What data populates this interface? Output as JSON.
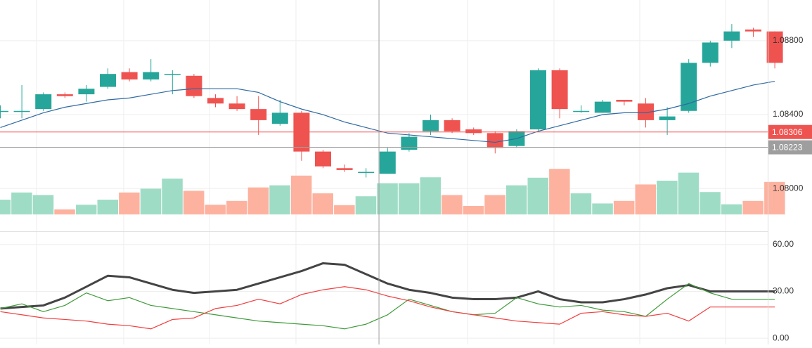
{
  "colors": {
    "up": "#26a69a",
    "down": "#ef5350",
    "volume_up": "#9fdcc6",
    "volume_down": "#fdb29f",
    "ma": "#2f6aa1",
    "price_line": "#ef5350",
    "crosshair_label": "#9e9e9e",
    "grid": "#eeeeee",
    "adx": "#444444",
    "plus_di": "#3f9b3a",
    "minus_di": "#f23d3d"
  },
  "chart_data": [
    {
      "name": "price",
      "type": "candlestick",
      "ylim": [
        1.0786,
        1.0902
      ],
      "y_ticks": [
        "1.08800",
        "1.08400",
        "1.08000"
      ],
      "y_tick_values": [
        1.088,
        1.084,
        1.08
      ],
      "candles": [
        {
          "o": 1.0842,
          "h": 1.0845,
          "l": 1.0838,
          "c": 1.0842
        },
        {
          "o": 1.0842,
          "h": 1.0856,
          "l": 1.0838,
          "c": 1.0842
        },
        {
          "o": 1.0843,
          "h": 1.0852,
          "l": 1.0842,
          "c": 1.0851
        },
        {
          "o": 1.0851,
          "h": 1.0852,
          "l": 1.0849,
          "c": 1.085
        },
        {
          "o": 1.0851,
          "h": 1.0856,
          "l": 1.0847,
          "c": 1.0854
        },
        {
          "o": 1.0855,
          "h": 1.0865,
          "l": 1.0854,
          "c": 1.0862
        },
        {
          "o": 1.0863,
          "h": 1.0865,
          "l": 1.0858,
          "c": 1.0859
        },
        {
          "o": 1.0859,
          "h": 1.087,
          "l": 1.0858,
          "c": 1.0863
        },
        {
          "o": 1.0862,
          "h": 1.0864,
          "l": 1.0851,
          "c": 1.0862
        },
        {
          "o": 1.0861,
          "h": 1.0862,
          "l": 1.0849,
          "c": 1.085
        },
        {
          "o": 1.0849,
          "h": 1.0851,
          "l": 1.0844,
          "c": 1.0846
        },
        {
          "o": 1.0846,
          "h": 1.085,
          "l": 1.0842,
          "c": 1.0843
        },
        {
          "o": 1.0843,
          "h": 1.085,
          "l": 1.0829,
          "c": 1.0837
        },
        {
          "o": 1.0835,
          "h": 1.0848,
          "l": 1.0834,
          "c": 1.0841
        },
        {
          "o": 1.0841,
          "h": 1.0842,
          "l": 1.0815,
          "c": 1.082
        },
        {
          "o": 1.082,
          "h": 1.0821,
          "l": 1.0811,
          "c": 1.0812
        },
        {
          "o": 1.0811,
          "h": 1.0813,
          "l": 1.0809,
          "c": 1.081
        },
        {
          "o": 1.0809,
          "h": 1.0811,
          "l": 1.0806,
          "c": 1.0809
        },
        {
          "o": 1.0808,
          "h": 1.0822,
          "l": 1.0808,
          "c": 1.082
        },
        {
          "o": 1.0821,
          "h": 1.083,
          "l": 1.082,
          "c": 1.0828
        },
        {
          "o": 1.0831,
          "h": 1.084,
          "l": 1.0829,
          "c": 1.0837
        },
        {
          "o": 1.0837,
          "h": 1.0838,
          "l": 1.083,
          "c": 1.0831
        },
        {
          "o": 1.0832,
          "h": 1.0833,
          "l": 1.0829,
          "c": 1.083
        },
        {
          "o": 1.083,
          "h": 1.0831,
          "l": 1.0819,
          "c": 1.0822
        },
        {
          "o": 1.0823,
          "h": 1.0832,
          "l": 1.0822,
          "c": 1.0831
        },
        {
          "o": 1.0832,
          "h": 1.0865,
          "l": 1.0831,
          "c": 1.0864
        },
        {
          "o": 1.0864,
          "h": 1.0865,
          "l": 1.0838,
          "c": 1.0843
        },
        {
          "o": 1.0842,
          "h": 1.0845,
          "l": 1.0841,
          "c": 1.0842
        },
        {
          "o": 1.0841,
          "h": 1.0848,
          "l": 1.0841,
          "c": 1.0847
        },
        {
          "o": 1.0848,
          "h": 1.0848,
          "l": 1.0845,
          "c": 1.0847
        },
        {
          "o": 1.0846,
          "h": 1.0849,
          "l": 1.0833,
          "c": 1.0837
        },
        {
          "o": 1.0837,
          "h": 1.0844,
          "l": 1.0829,
          "c": 1.0839
        },
        {
          "o": 1.0842,
          "h": 1.087,
          "l": 1.0841,
          "c": 1.0868
        },
        {
          "o": 1.0868,
          "h": 1.088,
          "l": 1.0866,
          "c": 1.0879
        },
        {
          "o": 1.088,
          "h": 1.0889,
          "l": 1.0876,
          "c": 1.0885
        },
        {
          "o": 1.0886,
          "h": 1.0887,
          "l": 1.0882,
          "c": 1.0885
        },
        {
          "o": 1.0885,
          "h": 1.0885,
          "l": 1.0865,
          "c": 1.0868
        }
      ],
      "moving_average": [
        1.0833,
        1.0837,
        1.0841,
        1.0844,
        1.0846,
        1.0848,
        1.0849,
        1.0851,
        1.0853,
        1.0854,
        1.0854,
        1.0854,
        1.0852,
        1.0847,
        1.0843,
        1.084,
        1.0836,
        1.0833,
        1.083,
        1.0829,
        1.0828,
        1.0827,
        1.0826,
        1.0825,
        1.0827,
        1.0831,
        1.0834,
        1.0837,
        1.084,
        1.0841,
        1.0841,
        1.0843,
        1.0846,
        1.085,
        1.0853,
        1.0856,
        1.0858
      ],
      "price_line": 1.08306,
      "price_label": "1.08306",
      "crosshair_price": 1.08223,
      "crosshair_label": "1.08223",
      "crosshair_index": 17.6
    },
    {
      "name": "volume",
      "type": "bar",
      "values": [
        35,
        52,
        46,
        12,
        23,
        35,
        52,
        61,
        85,
        56,
        23,
        32,
        64,
        69,
        92,
        50,
        22,
        43,
        74,
        74,
        88,
        46,
        20,
        46,
        69,
        87,
        108,
        50,
        26,
        32,
        71,
        80,
        99,
        53,
        24,
        32,
        77
      ]
    },
    {
      "name": "dmi",
      "type": "line",
      "ylim": [
        -4,
        68
      ],
      "y_ticks": [
        "60.00",
        "30.00",
        "0.00"
      ],
      "y_tick_values": [
        60,
        30,
        0
      ],
      "series": [
        {
          "key": "adx",
          "values": [
            19,
            20,
            21,
            26,
            33,
            40,
            39,
            35,
            31,
            29,
            30,
            31,
            35,
            39,
            43,
            48,
            47,
            41,
            35,
            31,
            29,
            26,
            25,
            25,
            26,
            30,
            25,
            23,
            23,
            25,
            28,
            32,
            34,
            30,
            30,
            30,
            30
          ]
        },
        {
          "key": "plus_di",
          "values": [
            19,
            22,
            17,
            21,
            29,
            24,
            26,
            21,
            19,
            17,
            15,
            13,
            11,
            10,
            9,
            8,
            6,
            9,
            15,
            25,
            21,
            17,
            15,
            16,
            26,
            22,
            20,
            21,
            18,
            17,
            14,
            25,
            35,
            29,
            25,
            25,
            25
          ]
        },
        {
          "key": "minus_di",
          "values": [
            17,
            15,
            13,
            12,
            11,
            9,
            8,
            6,
            12,
            13,
            19,
            21,
            25,
            22,
            28,
            31,
            33,
            31,
            27,
            24,
            20,
            17,
            15,
            13,
            11,
            10,
            9,
            16,
            17,
            15,
            14,
            16,
            11,
            20,
            20,
            20,
            20
          ]
        }
      ]
    }
  ]
}
